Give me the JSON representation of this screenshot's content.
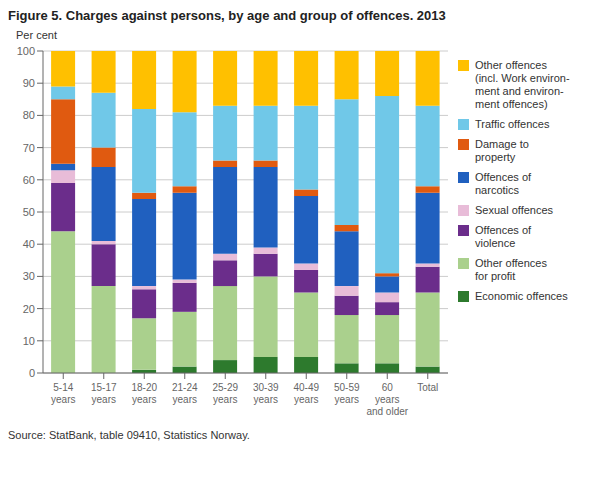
{
  "chart_data": {
    "type": "bar",
    "stacked": true,
    "title": "Figure 5. Charges against persons, by age and group of offences. 2013",
    "ylabel": "Per cent",
    "annotations": [
      "Source: StatBank, table 09410, Statistics Norway."
    ],
    "categories": [
      "5-14\nyears",
      "15-17\nyears",
      "18-20\nyears",
      "21-24\nyears",
      "25-29\nyears",
      "30-39\nyears",
      "40-49\nyears",
      "50-59\nyears",
      "60\nyears\nand older",
      "Total"
    ],
    "series": [
      {
        "name": "Economic offences",
        "color": "#2d7a2d",
        "values": [
          0,
          0,
          1,
          2,
          4,
          5,
          5,
          3,
          3,
          2
        ]
      },
      {
        "name": "Other offences\nfor profit",
        "color": "#aad08d",
        "values": [
          44,
          27,
          16,
          17,
          23,
          25,
          20,
          15,
          15,
          23
        ]
      },
      {
        "name": "Offences of\nviolence",
        "color": "#6b2d8b",
        "values": [
          15,
          13,
          9,
          9,
          8,
          7,
          7,
          6,
          4,
          8
        ]
      },
      {
        "name": "Sexual offences",
        "color": "#e8bcd8",
        "values": [
          4,
          1,
          1,
          1,
          2,
          2,
          2,
          3,
          3,
          1
        ]
      },
      {
        "name": "Offences of\nnarcotics",
        "color": "#2060bf",
        "values": [
          2,
          23,
          27,
          27,
          27,
          25,
          21,
          17,
          5,
          22
        ]
      },
      {
        "name": "Damage to\nproperty",
        "color": "#e05a10",
        "values": [
          20,
          6,
          2,
          2,
          2,
          2,
          2,
          2,
          1,
          2
        ]
      },
      {
        "name": "Traffic offences",
        "color": "#70c8e8",
        "values": [
          4,
          17,
          26,
          23,
          17,
          17,
          26,
          39,
          55,
          25
        ]
      },
      {
        "name": "Other offences\n(incl. Work environ-\nment and environ-\nment offences)",
        "color": "#ffc000",
        "values": [
          11,
          13,
          18,
          19,
          17,
          17,
          17,
          15,
          14,
          17
        ]
      }
    ],
    "ylim": [
      0,
      100
    ],
    "yticks": [
      0,
      10,
      20,
      30,
      40,
      50,
      60,
      70,
      80,
      90,
      100
    ],
    "grid": true,
    "legend": "right"
  }
}
